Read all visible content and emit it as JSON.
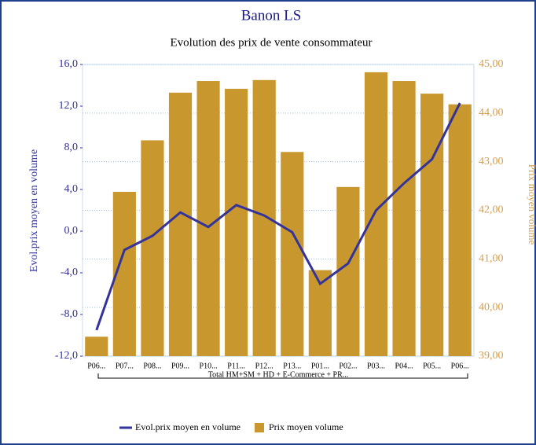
{
  "chart_data": {
    "type": "bar_line",
    "title": "Banon LS",
    "subtitle": "Evolution des prix de vente consommateur",
    "y_label": "Evol.prix moyen en volume",
    "y2_label": "Prix moyen volume",
    "group_label": "Total HM+SM + HD + E-Commerce + PR...",
    "categories": [
      "P06...",
      "P07...",
      "P08...",
      "P09...",
      "P10...",
      "P11...",
      "P12...",
      "P13...",
      "P01...",
      "P02...",
      "P03...",
      "P04...",
      "P05...",
      "P06..."
    ],
    "series": [
      {
        "name": "Evol.prix moyen en volume",
        "type": "line",
        "color": "#333399",
        "values": [
          -9.5,
          -1.8,
          -0.45,
          1.8,
          0.4,
          2.5,
          1.5,
          -0.1,
          -5.05,
          -3.1,
          2.0,
          4.6,
          6.9,
          12.3
        ]
      },
      {
        "name": "Prix moyen volume",
        "type": "bar",
        "axis": "y2",
        "color": "#c8982f",
        "values": [
          39.4,
          42.38,
          43.44,
          44.42,
          44.66,
          44.5,
          44.68,
          43.2,
          40.77,
          42.48,
          44.84,
          44.66,
          44.4,
          44.18
        ]
      }
    ],
    "ylim": [
      -12,
      16
    ],
    "yticks": [
      {
        "value": -12,
        "label": "-12,0"
      },
      {
        "value": -8,
        "label": "-8,0"
      },
      {
        "value": -4,
        "label": "-4,0"
      },
      {
        "value": 0,
        "label": "0,0"
      },
      {
        "value": 4,
        "label": "4,0"
      },
      {
        "value": 8,
        "label": "8,0"
      },
      {
        "value": 12,
        "label": "12,0"
      },
      {
        "value": 16,
        "label": "16,0"
      }
    ],
    "y2lim": [
      39,
      45
    ],
    "y2ticks": [
      {
        "value": 39,
        "label": "39,00"
      },
      {
        "value": 40,
        "label": "40,00"
      },
      {
        "value": 41,
        "label": "41,00"
      },
      {
        "value": 42,
        "label": "42,00"
      },
      {
        "value": 43,
        "label": "43,00"
      },
      {
        "value": 44,
        "label": "44,00"
      },
      {
        "value": 45,
        "label": "45,00"
      }
    ],
    "grid": true,
    "legend": "bottom"
  }
}
